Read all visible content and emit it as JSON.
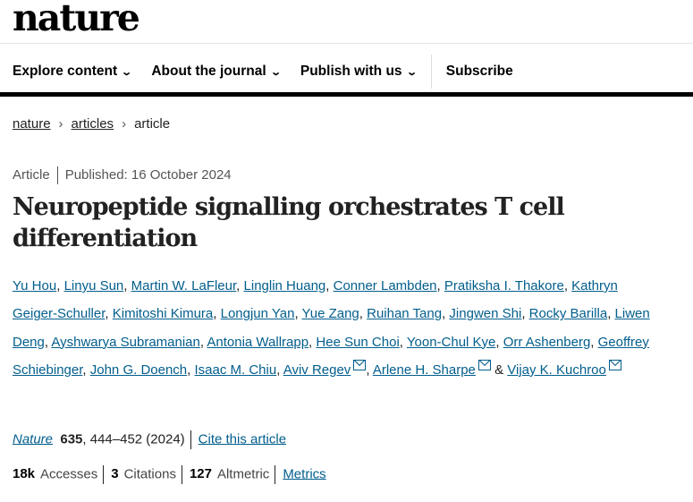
{
  "header": {
    "logo": "nature"
  },
  "nav": {
    "items": [
      {
        "label": "Explore content"
      },
      {
        "label": "About the journal"
      },
      {
        "label": "Publish with us"
      }
    ],
    "subscribe": "Subscribe"
  },
  "breadcrumb": [
    {
      "label": "nature"
    },
    {
      "label": "articles"
    },
    {
      "label": "article"
    }
  ],
  "article": {
    "type": "Article",
    "published": "Published: 16 October 2024",
    "title": "Neuropeptide signalling orchestrates T cell differentiation",
    "authors": [
      {
        "name": "Yu Hou"
      },
      {
        "name": "Linyu Sun"
      },
      {
        "name": "Martin W. LaFleur"
      },
      {
        "name": "Linglin Huang"
      },
      {
        "name": "Conner Lambden"
      },
      {
        "name": "Pratiksha I. Thakore"
      },
      {
        "name": "Kathryn Geiger-Schuller"
      },
      {
        "name": "Kimitoshi Kimura"
      },
      {
        "name": "Longjun Yan"
      },
      {
        "name": "Yue Zang"
      },
      {
        "name": "Ruihan Tang"
      },
      {
        "name": "Jingwen Shi"
      },
      {
        "name": "Rocky Barilla"
      },
      {
        "name": "Liwen Deng"
      },
      {
        "name": "Ayshwarya Subramanian"
      },
      {
        "name": "Antonia Wallrapp"
      },
      {
        "name": "Hee Sun Choi"
      },
      {
        "name": "Yoon-Chul Kye"
      },
      {
        "name": "Orr Ashenberg"
      },
      {
        "name": "Geoffrey Schiebinger"
      },
      {
        "name": "John G. Doench"
      },
      {
        "name": "Isaac M. Chiu"
      },
      {
        "name": "Aviv Regev",
        "email": true
      },
      {
        "name": "Arlene H. Sharpe",
        "email": true
      },
      {
        "name": "Vijay K. Kuchroo",
        "email": true
      }
    ],
    "journal": "Nature",
    "volume": "635",
    "pages_year": ", 444–452 (2024)",
    "cite_label": "Cite this article"
  },
  "metrics": {
    "accesses": "18k",
    "accesses_label": "Accesses",
    "citations": "3",
    "citations_label": "Citations",
    "altmetric": "127",
    "altmetric_label": "Altmetric",
    "metrics_link": "Metrics"
  },
  "colors": {
    "link": "#025e8d"
  }
}
